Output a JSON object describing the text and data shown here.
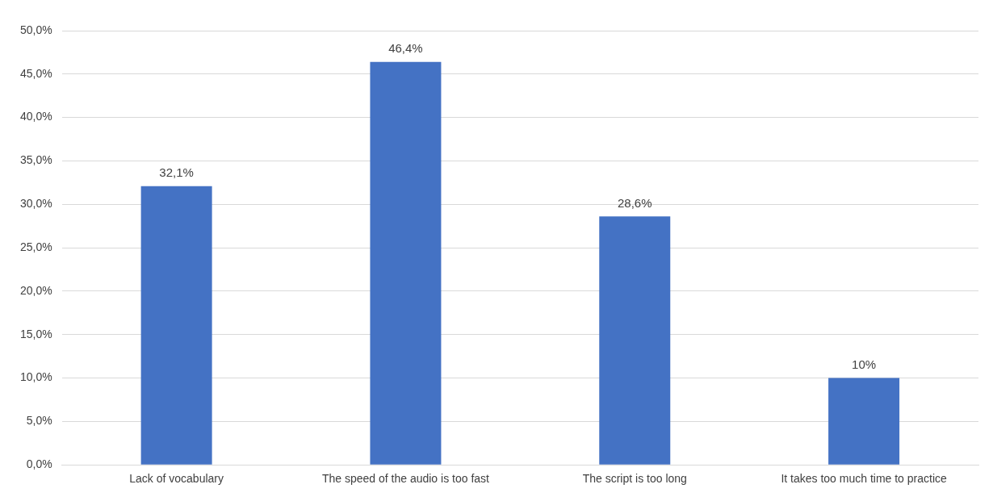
{
  "chart_data": {
    "type": "bar",
    "categories": [
      "Lack of vocabulary",
      "The speed of the audio is too fast",
      "The script is too long",
      "It takes too much time to practice"
    ],
    "values": [
      32.1,
      46.4,
      28.6,
      10
    ],
    "value_labels": [
      "32,1%",
      "46,4%",
      "28,6%",
      "10%"
    ],
    "color": "#4472c4",
    "ylim": [
      0,
      50
    ],
    "yticks": [
      {
        "value": 0,
        "label": "0,0%"
      },
      {
        "value": 5,
        "label": "5,0%"
      },
      {
        "value": 10,
        "label": "10,0%"
      },
      {
        "value": 15,
        "label": "15,0%"
      },
      {
        "value": 20,
        "label": "20,0%"
      },
      {
        "value": 25,
        "label": "25,0%"
      },
      {
        "value": 30,
        "label": "30,0%"
      },
      {
        "value": 35,
        "label": "35,0%"
      },
      {
        "value": 40,
        "label": "40,0%"
      },
      {
        "value": 45,
        "label": "45,0%"
      },
      {
        "value": 50,
        "label": "50,0%"
      }
    ],
    "grid": "y",
    "legend": false
  }
}
